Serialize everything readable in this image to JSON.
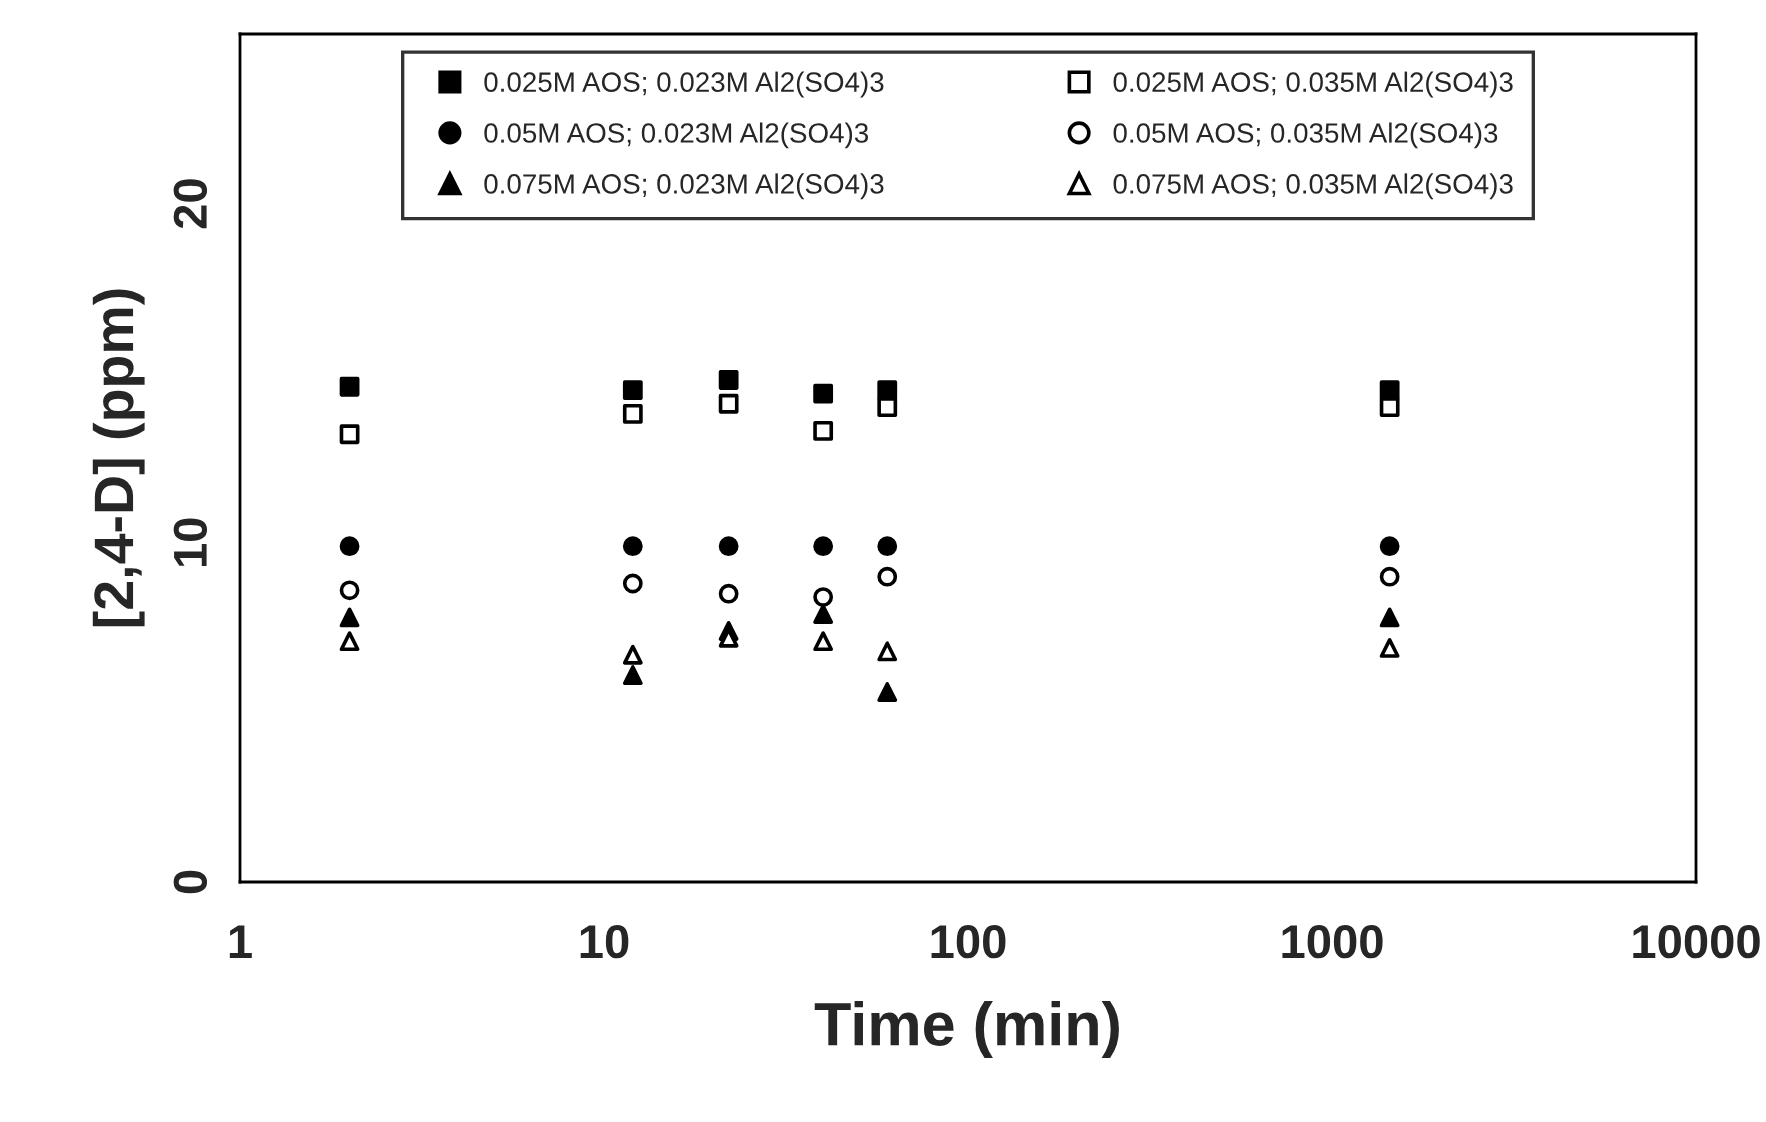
{
  "chart_data": {
    "type": "scatter",
    "xlabel": "Time (min)",
    "ylabel": "[2,4-D] (ppm)",
    "x": [
      2,
      12,
      22,
      40,
      60,
      1440
    ],
    "log": "x",
    "xlim": [
      1,
      10000
    ],
    "xticks": [
      1,
      10,
      100,
      1000,
      10000
    ],
    "ylim": [
      0,
      25
    ],
    "yticks": [
      0,
      10,
      20
    ],
    "grid": false,
    "legend": "top",
    "series": [
      {
        "name": "0.025M AOS; 0.023M Al2(SO4)3",
        "color": "#000000",
        "marker": "square",
        "values": [
          14.6,
          14.5,
          14.8,
          14.4,
          14.5,
          14.5
        ]
      },
      {
        "name": "0.025M AOS; 0.035M Al2(SO4)3",
        "color": "#ffffff",
        "marker": "square",
        "values": [
          13.2,
          13.8,
          14.1,
          13.3,
          14.0,
          14.0
        ]
      },
      {
        "name": "0.05M AOS; 0.023M Al2(SO4)3",
        "color": "#000000",
        "marker": "circle",
        "values": [
          9.9,
          9.9,
          9.9,
          9.9,
          9.9,
          9.9
        ]
      },
      {
        "name": "0.05M AOS; 0.035M Al2(SO4)3",
        "color": "#ffffff",
        "marker": "circle",
        "values": [
          8.6,
          8.8,
          8.5,
          8.4,
          9.0,
          9.0
        ]
      },
      {
        "name": "0.075M AOS; 0.023M Al2(SO4)3",
        "color": "#000000",
        "marker": "triangle",
        "values": [
          7.8,
          6.1,
          7.4,
          7.9,
          5.6,
          7.8
        ]
      },
      {
        "name": "0.075M AOS; 0.035M Al2(SO4)3",
        "color": "#ffffff",
        "marker": "triangle",
        "values": [
          7.1,
          6.7,
          7.2,
          7.1,
          6.8,
          6.9
        ]
      }
    ]
  }
}
